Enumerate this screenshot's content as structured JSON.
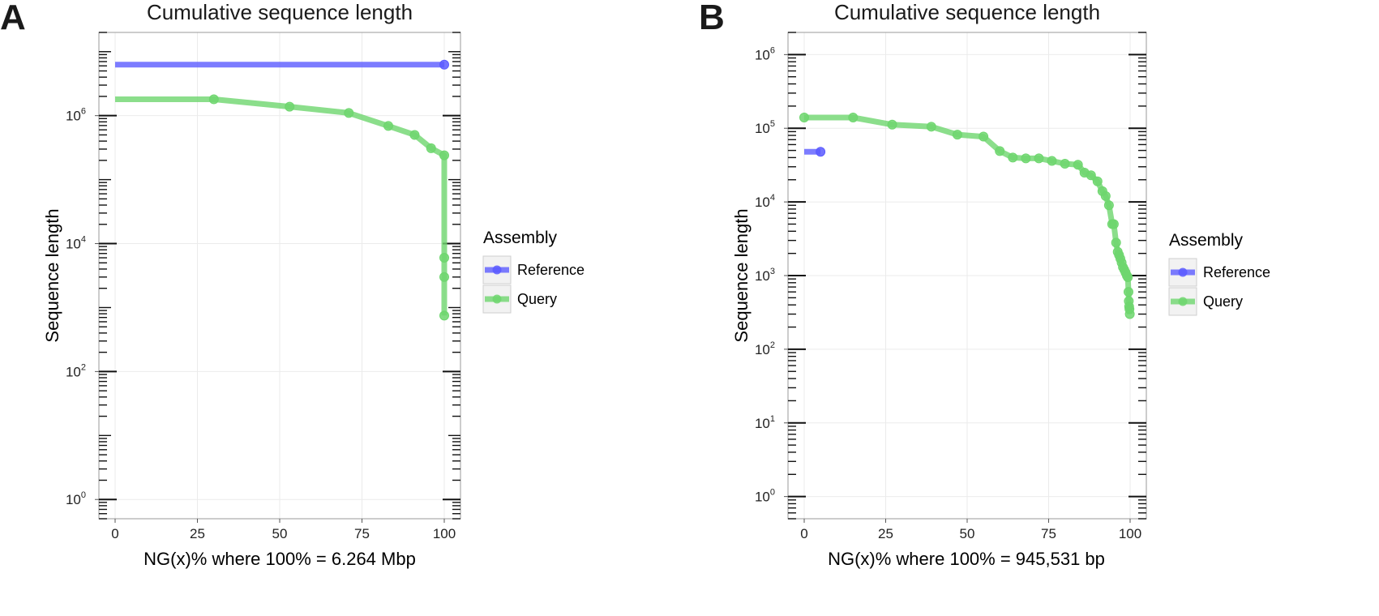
{
  "chart_data": [
    {
      "panel": "A",
      "type": "line",
      "title": "Cumulative sequence length",
      "xlabel": "NG(x)% where 100% = 6.264 Mbp",
      "ylabel": "Sequence length",
      "log_y": true,
      "xlim": [
        0,
        100
      ],
      "ylim": [
        0.5,
        20000000
      ],
      "x_ticks": [
        0,
        25,
        50,
        75,
        100
      ],
      "y_ticks": [
        {
          "base": "10",
          "exp": "0",
          "value": 1
        },
        {
          "base": "10",
          "exp": "2",
          "value": 100
        },
        {
          "base": "10",
          "exp": "4",
          "value": 10000
        },
        {
          "base": "10",
          "exp": "6",
          "value": 1000000
        }
      ],
      "grid": true,
      "legend": {
        "title": "Assembly",
        "position": "right",
        "entries": [
          {
            "label": "Reference",
            "color": "#5b5bff"
          },
          {
            "label": "Query",
            "color": "#6ed66e"
          }
        ]
      },
      "series": [
        {
          "name": "Reference",
          "color": "#5b5bff",
          "x": [
            0,
            100
          ],
          "y": [
            6264000,
            6264000
          ],
          "markers": [
            false,
            true
          ]
        },
        {
          "name": "Query",
          "color": "#6ed66e",
          "x": [
            0,
            30,
            53,
            71,
            83,
            91,
            96,
            100,
            100,
            100,
            100
          ],
          "y": [
            1800000,
            1800000,
            1380000,
            1100000,
            690000,
            500000,
            310000,
            240000,
            6000,
            3000,
            750
          ],
          "markers": [
            false,
            true,
            true,
            true,
            true,
            true,
            true,
            true,
            true,
            true,
            true
          ]
        }
      ]
    },
    {
      "panel": "B",
      "type": "line",
      "title": "Cumulative sequence length",
      "xlabel": "NG(x)% where 100% = 945,531 bp",
      "ylabel": "Sequence length",
      "log_y": true,
      "xlim": [
        0,
        100
      ],
      "ylim": [
        0.5,
        2000000
      ],
      "x_ticks": [
        0,
        25,
        50,
        75,
        100
      ],
      "y_ticks": [
        {
          "base": "10",
          "exp": "0",
          "value": 1
        },
        {
          "base": "10",
          "exp": "1",
          "value": 10
        },
        {
          "base": "10",
          "exp": "2",
          "value": 100
        },
        {
          "base": "10",
          "exp": "3",
          "value": 1000
        },
        {
          "base": "10",
          "exp": "4",
          "value": 10000
        },
        {
          "base": "10",
          "exp": "5",
          "value": 100000
        },
        {
          "base": "10",
          "exp": "6",
          "value": 1000000
        }
      ],
      "grid": true,
      "legend": {
        "title": "Assembly",
        "position": "right",
        "entries": [
          {
            "label": "Reference",
            "color": "#5b5bff"
          },
          {
            "label": "Query",
            "color": "#6ed66e"
          }
        ]
      },
      "series": [
        {
          "name": "Reference",
          "color": "#5b5bff",
          "x": [
            0,
            5
          ],
          "y": [
            48000,
            48000
          ],
          "markers": [
            false,
            true
          ]
        },
        {
          "name": "Query",
          "color": "#6ed66e",
          "x": [
            0,
            15,
            27,
            39,
            47,
            55,
            60,
            64,
            68,
            72,
            76,
            80,
            84,
            86,
            88,
            90,
            91.5,
            92.5,
            93.5,
            94.5,
            95,
            95.7,
            96.2,
            96.6,
            97,
            97.4,
            97.8,
            98.2,
            98.6,
            99,
            99.3,
            99.5,
            99.6,
            99.7,
            99.8,
            99.9
          ],
          "y": [
            140000,
            140000,
            112000,
            105000,
            82000,
            77000,
            49000,
            40000,
            39000,
            39000,
            36000,
            33000,
            32000,
            25000,
            23000,
            19000,
            14000,
            12000,
            9000,
            5000,
            5000,
            2800,
            2100,
            1900,
            1700,
            1500,
            1300,
            1200,
            1100,
            1000,
            950,
            600,
            450,
            380,
            350,
            300
          ],
          "markers": true
        }
      ]
    }
  ]
}
